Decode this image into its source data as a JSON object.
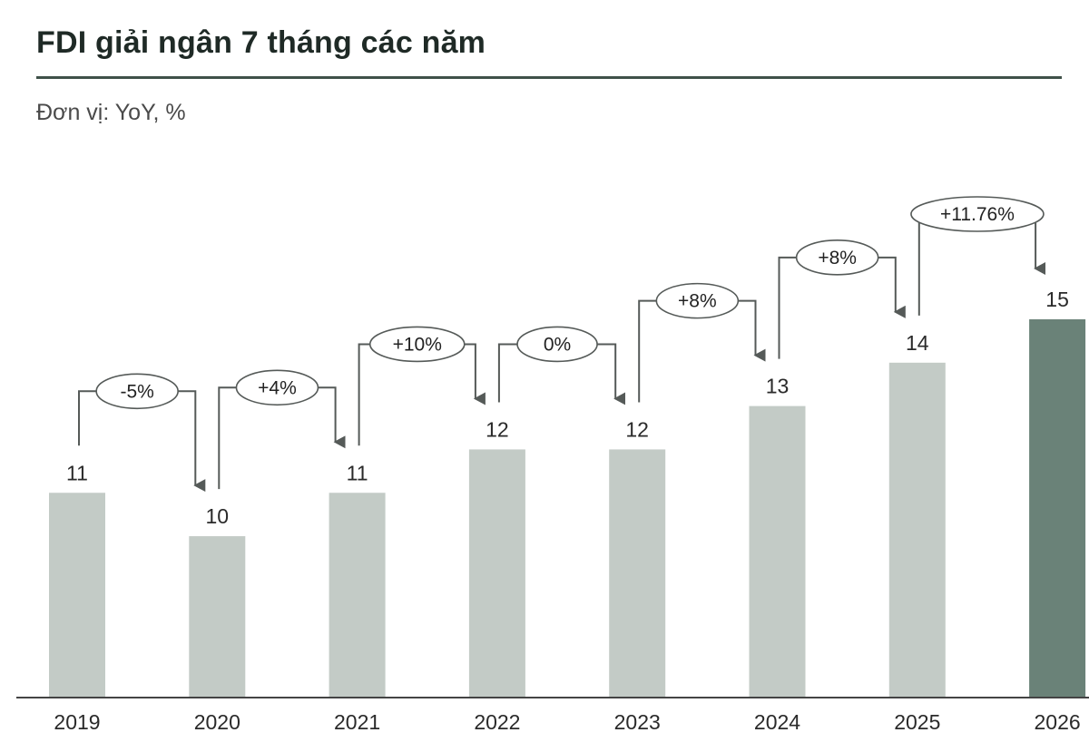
{
  "title": "FDI giải ngân 7 tháng các năm",
  "subtitle": "Đơn vị: YoY, %",
  "colors": {
    "bar": "#c3cbc6",
    "bar_highlight": "#6a8278",
    "connector": "#555a58",
    "rule": "#3f5149",
    "axis": "#444444"
  },
  "chart_data": {
    "type": "bar",
    "title": "FDI giải ngân 7 tháng các năm",
    "subtitle": "Đơn vị: YoY, %",
    "xlabel": "",
    "ylabel": "",
    "categories": [
      "2019",
      "2020",
      "2021",
      "2022",
      "2023",
      "2024",
      "2025",
      "2026"
    ],
    "values": [
      11,
      10,
      11,
      12,
      12,
      13,
      14,
      15
    ],
    "value_labels": [
      "11",
      "10",
      "11",
      "12",
      "12",
      "13",
      "14",
      "15"
    ],
    "highlight_index": 7,
    "ylim": [
      6.3,
      15
    ],
    "grid": false,
    "annotations": [
      {
        "from": "2019",
        "to": "2020",
        "label": "-5%"
      },
      {
        "from": "2020",
        "to": "2021",
        "label": "+4%"
      },
      {
        "from": "2021",
        "to": "2022",
        "label": "+10%"
      },
      {
        "from": "2022",
        "to": "2023",
        "label": "0%"
      },
      {
        "from": "2023",
        "to": "2024",
        "label": "+8%"
      },
      {
        "from": "2024",
        "to": "2025",
        "label": "+8%"
      },
      {
        "from": "2025",
        "to": "2026",
        "label": "+11.76%"
      }
    ]
  }
}
